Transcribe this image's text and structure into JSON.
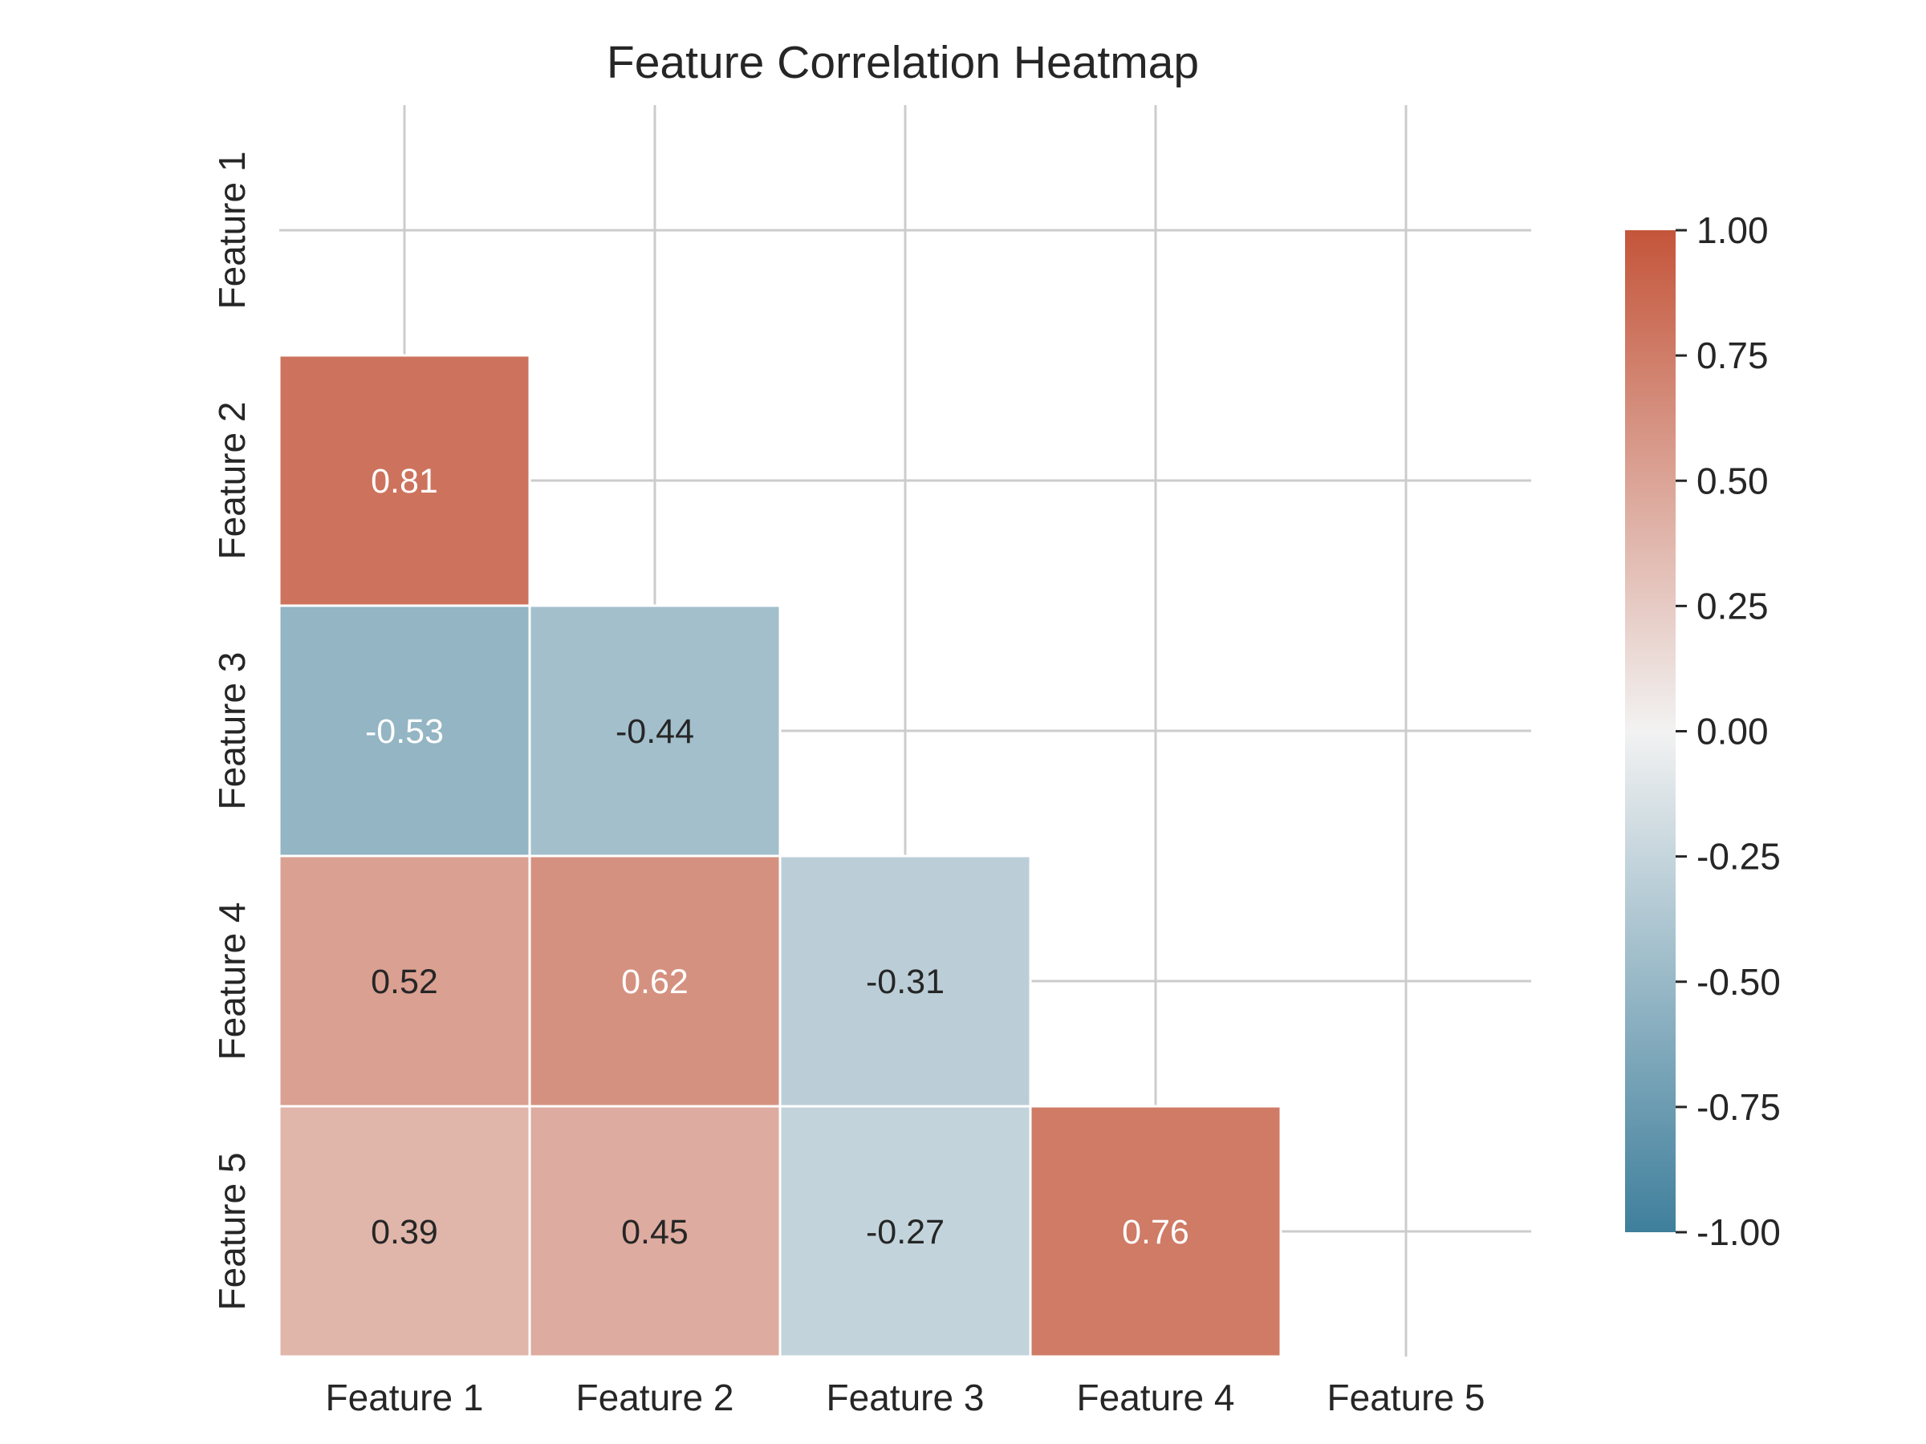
{
  "chart_data": {
    "type": "heatmap",
    "title": "Feature Correlation Heatmap",
    "xlabel": "",
    "ylabel": "",
    "x_categories": [
      "Feature 1",
      "Feature 2",
      "Feature 3",
      "Feature 4",
      "Feature 5"
    ],
    "y_categories": [
      "Feature 1",
      "Feature 2",
      "Feature 3",
      "Feature 4",
      "Feature 5"
    ],
    "mask": "upper triangle including diagonal",
    "values": [
      [
        null,
        null,
        null,
        null,
        null
      ],
      [
        0.81,
        null,
        null,
        null,
        null
      ],
      [
        -0.53,
        -0.44,
        null,
        null,
        null
      ],
      [
        0.52,
        0.62,
        -0.31,
        null,
        null
      ],
      [
        0.39,
        0.45,
        -0.27,
        0.76,
        null
      ]
    ],
    "value_labels": [
      [
        null,
        null,
        null,
        null,
        null
      ],
      [
        "0.81",
        null,
        null,
        null,
        null
      ],
      [
        "-0.53",
        "-0.44",
        null,
        null,
        null
      ],
      [
        "0.52",
        "0.62",
        "-0.31",
        null,
        null
      ],
      [
        "0.39",
        "0.45",
        "-0.27",
        "0.76",
        null
      ]
    ],
    "colorbar": {
      "range": [
        -1.0,
        1.0
      ],
      "ticks": [
        1.0,
        0.75,
        0.5,
        0.25,
        0.0,
        -0.25,
        -0.5,
        -0.75,
        -1.0
      ],
      "tick_labels": [
        "1.00",
        "0.75",
        "0.50",
        "0.25",
        "0.00",
        "-0.25",
        "-0.50",
        "-0.75",
        "-1.00"
      ],
      "colormap": "diverging blue-to-red",
      "low_color": "#3f7f9c",
      "mid_color": "#f2f2f2",
      "high_color": "#c4553a"
    },
    "grid": true,
    "colors": {
      "text_dark": "#262626",
      "text_light": "#ffffff",
      "grid": "#cccccc",
      "cell_border": "#ffffff"
    }
  }
}
